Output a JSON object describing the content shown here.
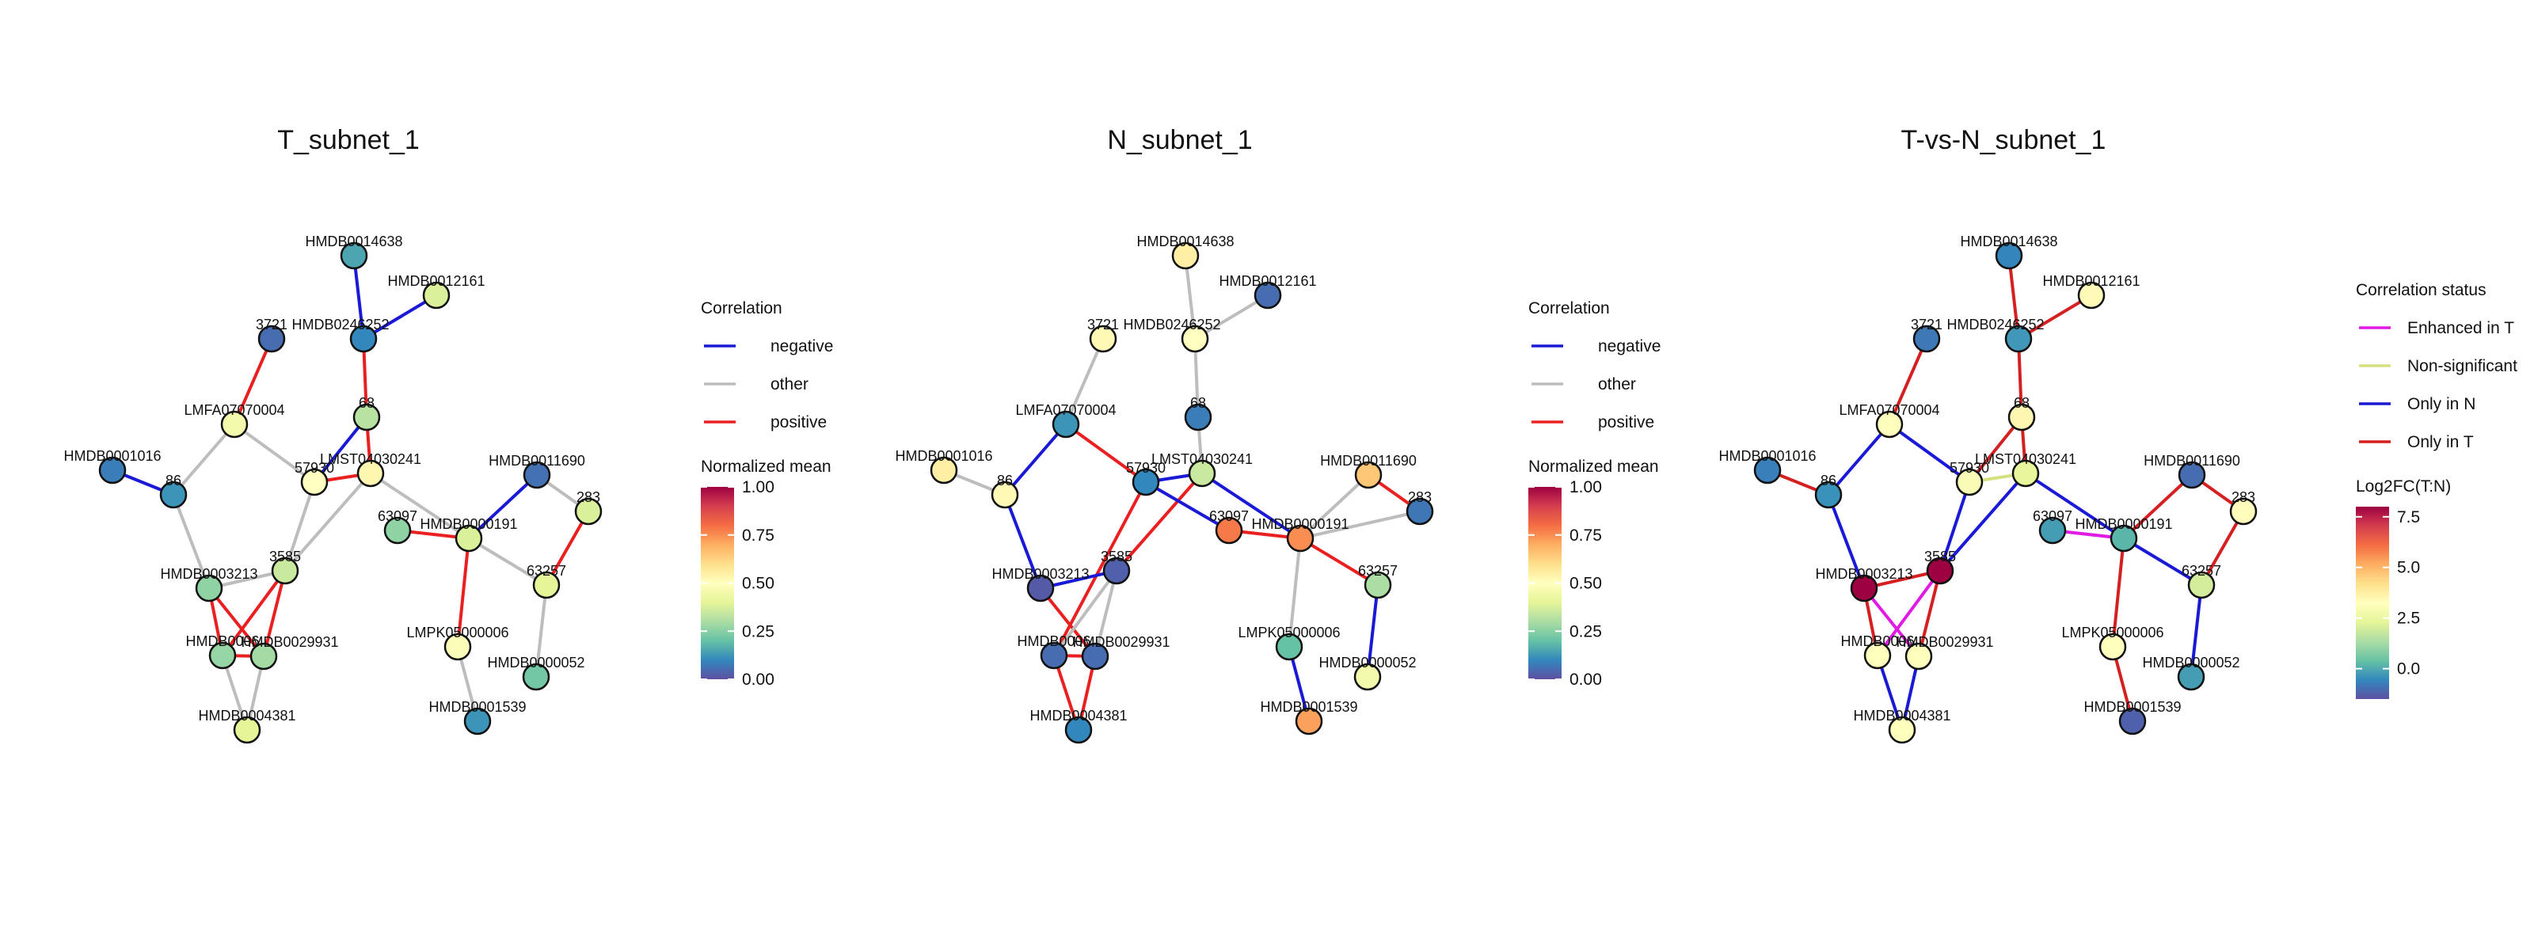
{
  "colors": {
    "negative": "#1a1ad6",
    "other": "#bdbdbd",
    "positive": "#ea2020",
    "enhanced_in_t": "#e11be6",
    "non_significant": "#d7e07e",
    "only_in_n": "#1a1ad6",
    "only_in_t": "#d42020",
    "node_stroke": "#111111"
  },
  "node_ids": [
    "HMDB0014638",
    "HMDB0012161",
    "3721",
    "HMDB0246252",
    "LMFA07070004",
    "68",
    "HMDB0001016",
    "86",
    "57930",
    "LMST04030241",
    "HMDB0011690",
    "283",
    "63097",
    "HMDB0000191",
    "HMDB0003213",
    "3585",
    "63257",
    "HMDB0006",
    "HMDB0029931",
    "LMPK05000006",
    "HMDB0000052",
    "HMDB0001539",
    "HMDB0004381"
  ],
  "panels": [
    {
      "title": "T_subnet_1",
      "node_values": [
        0.15,
        0.38,
        0.05,
        0.1,
        0.45,
        0.32,
        0.08,
        0.12,
        0.5,
        0.53,
        0.06,
        0.38,
        0.26,
        0.38,
        0.26,
        0.35,
        0.4,
        0.27,
        0.29,
        0.48,
        0.22,
        0.12,
        0.4
      ],
      "edges": [
        [
          "HMDB0014638",
          "HMDB0246252",
          "negative"
        ],
        [
          "HMDB0012161",
          "HMDB0246252",
          "negative"
        ],
        [
          "HMDB0246252",
          "68",
          "positive"
        ],
        [
          "3721",
          "LMFA07070004",
          "positive"
        ],
        [
          "LMFA07070004",
          "86",
          "other"
        ],
        [
          "LMFA07070004",
          "57930",
          "other"
        ],
        [
          "68",
          "LMST04030241",
          "positive"
        ],
        [
          "68",
          "57930",
          "negative"
        ],
        [
          "57930",
          "LMST04030241",
          "positive"
        ],
        [
          "HMDB0001016",
          "86",
          "negative"
        ],
        [
          "86",
          "HMDB0003213",
          "other"
        ],
        [
          "57930",
          "3585",
          "other"
        ],
        [
          "LMST04030241",
          "3585",
          "other"
        ],
        [
          "LMST04030241",
          "HMDB0000191",
          "other"
        ],
        [
          "63097",
          "HMDB0000191",
          "positive"
        ],
        [
          "HMDB0011690",
          "HMDB0000191",
          "negative"
        ],
        [
          "HMDB0011690",
          "283",
          "other"
        ],
        [
          "283",
          "63257",
          "positive"
        ],
        [
          "HMDB0000191",
          "63257",
          "other"
        ],
        [
          "HMDB0000191",
          "LMPK05000006",
          "positive"
        ],
        [
          "63257",
          "HMDB0000052",
          "other"
        ],
        [
          "LMPK05000006",
          "HMDB0001539",
          "other"
        ],
        [
          "3585",
          "HMDB0003213",
          "other"
        ],
        [
          "HMDB0003213",
          "HMDB0006",
          "positive"
        ],
        [
          "HMDB0003213",
          "HMDB0029931",
          "positive"
        ],
        [
          "3585",
          "HMDB0006",
          "positive"
        ],
        [
          "3585",
          "HMDB0029931",
          "positive"
        ],
        [
          "HMDB0006",
          "HMDB0029931",
          "positive"
        ],
        [
          "HMDB0006",
          "HMDB0004381",
          "other"
        ],
        [
          "HMDB0029931",
          "HMDB0004381",
          "other"
        ]
      ]
    },
    {
      "title": "N_subnet_1",
      "node_values": [
        0.55,
        0.05,
        0.52,
        0.5,
        0.12,
        0.08,
        0.55,
        0.52,
        0.1,
        0.35,
        0.65,
        0.07,
        0.78,
        0.75,
        0.02,
        0.03,
        0.3,
        0.05,
        0.05,
        0.2,
        0.45,
        0.72,
        0.1
      ],
      "edges": [
        [
          "HMDB0014638",
          "HMDB0246252",
          "other"
        ],
        [
          "HMDB0012161",
          "HMDB0246252",
          "other"
        ],
        [
          "3721",
          "LMFA07070004",
          "other"
        ],
        [
          "HMDB0246252",
          "68",
          "other"
        ],
        [
          "68",
          "LMST04030241",
          "other"
        ],
        [
          "LMFA07070004",
          "86",
          "negative"
        ],
        [
          "LMFA07070004",
          "57930",
          "positive"
        ],
        [
          "57930",
          "LMST04030241",
          "negative"
        ],
        [
          "HMDB0001016",
          "86",
          "other"
        ],
        [
          "86",
          "HMDB0003213",
          "negative"
        ],
        [
          "57930",
          "HMDB0006",
          "positive"
        ],
        [
          "LMST04030241",
          "3585",
          "positive"
        ],
        [
          "57930",
          "63097",
          "negative"
        ],
        [
          "LMST04030241",
          "HMDB0000191",
          "negative"
        ],
        [
          "63097",
          "HMDB0000191",
          "positive"
        ],
        [
          "HMDB0000191",
          "HMDB0011690",
          "other"
        ],
        [
          "HMDB0011690",
          "283",
          "positive"
        ],
        [
          "283",
          "HMDB0000191",
          "other"
        ],
        [
          "HMDB0000191",
          "63257",
          "positive"
        ],
        [
          "HMDB0000191",
          "LMPK05000006",
          "other"
        ],
        [
          "63257",
          "HMDB0000052",
          "negative"
        ],
        [
          "LMPK05000006",
          "HMDB0001539",
          "negative"
        ],
        [
          "HMDB0003213",
          "3585",
          "negative"
        ],
        [
          "HMDB0003213",
          "HMDB0029931",
          "positive"
        ],
        [
          "3585",
          "HMDB0006",
          "other"
        ],
        [
          "3585",
          "HMDB0029931",
          "other"
        ],
        [
          "HMDB0006",
          "HMDB0029931",
          "positive"
        ],
        [
          "HMDB0006",
          "HMDB0004381",
          "positive"
        ],
        [
          "HMDB0029931",
          "HMDB0004381",
          "positive"
        ]
      ]
    },
    {
      "title": "T-vs-N_subnet_1",
      "node_values": [
        -0.6,
        3.4,
        -0.8,
        -0.3,
        3.2,
        3.5,
        -0.7,
        -0.4,
        3.0,
        2.4,
        -1.0,
        3.3,
        -0.2,
        0.2,
        8.0,
        8.0,
        2.0,
        3.2,
        3.2,
        3.2,
        -0.2,
        -1.2,
        3.2
      ],
      "edges": [
        [
          "HMDB0014638",
          "HMDB0246252",
          "only_in_t"
        ],
        [
          "HMDB0012161",
          "HMDB0246252",
          "only_in_t"
        ],
        [
          "3721",
          "LMFA07070004",
          "only_in_t"
        ],
        [
          "HMDB0246252",
          "68",
          "only_in_t"
        ],
        [
          "LMFA07070004",
          "86",
          "only_in_n"
        ],
        [
          "LMFA07070004",
          "57930",
          "only_in_n"
        ],
        [
          "68",
          "57930",
          "only_in_t"
        ],
        [
          "68",
          "LMST04030241",
          "only_in_t"
        ],
        [
          "57930",
          "LMST04030241",
          "non_significant"
        ],
        [
          "HMDB0001016",
          "86",
          "only_in_t"
        ],
        [
          "86",
          "HMDB0003213",
          "only_in_n"
        ],
        [
          "LMST04030241",
          "3585",
          "only_in_n"
        ],
        [
          "57930",
          "3585",
          "only_in_n"
        ],
        [
          "LMST04030241",
          "HMDB0000191",
          "only_in_n"
        ],
        [
          "63097",
          "HMDB0000191",
          "enhanced_in_t"
        ],
        [
          "HMDB0011690",
          "HMDB0000191",
          "only_in_t"
        ],
        [
          "283",
          "HMDB0011690",
          "only_in_t"
        ],
        [
          "283",
          "63257",
          "only_in_t"
        ],
        [
          "HMDB0000191",
          "63257",
          "only_in_n"
        ],
        [
          "HMDB0000191",
          "LMPK05000006",
          "only_in_t"
        ],
        [
          "63257",
          "HMDB0000052",
          "only_in_n"
        ],
        [
          "LMPK05000006",
          "HMDB0001539",
          "only_in_t"
        ],
        [
          "HMDB0003213",
          "3585",
          "only_in_t"
        ],
        [
          "HMDB0003213",
          "HMDB0006",
          "only_in_t"
        ],
        [
          "HMDB0003213",
          "HMDB0029931",
          "enhanced_in_t"
        ],
        [
          "3585",
          "HMDB0006",
          "enhanced_in_t"
        ],
        [
          "3585",
          "HMDB0029931",
          "only_in_t"
        ],
        [
          "HMDB0006",
          "HMDB0004381",
          "only_in_n"
        ],
        [
          "HMDB0029931",
          "HMDB0004381",
          "only_in_n"
        ]
      ]
    }
  ],
  "legend_correlation": {
    "title": "Correlation",
    "items": [
      {
        "key": "negative",
        "label": "negative"
      },
      {
        "key": "other",
        "label": "other"
      },
      {
        "key": "positive",
        "label": "positive"
      }
    ]
  },
  "legend_normalized": {
    "title": "Normalized mean",
    "ticks": [
      "1.00",
      "0.75",
      "0.50",
      "0.25",
      "0.00"
    ],
    "range": [
      0,
      1
    ]
  },
  "legend_status": {
    "title": "Correlation status",
    "items": [
      {
        "key": "enhanced_in_t",
        "label": "Enhanced in T"
      },
      {
        "key": "non_significant",
        "label": "Non-significant"
      },
      {
        "key": "only_in_n",
        "label": "Only in N"
      },
      {
        "key": "only_in_t",
        "label": "Only in T"
      }
    ]
  },
  "legend_log2fc": {
    "title": "Log2FC(T:N)",
    "ticks": [
      "7.5",
      "5.0",
      "2.5",
      "0.0"
    ],
    "range": [
      -1.5,
      8.0
    ]
  }
}
